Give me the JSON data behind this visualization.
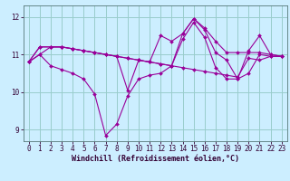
{
  "background_color": "#cceeff",
  "grid_color": "#99cccc",
  "line_color": "#990099",
  "ylim": [
    8.7,
    12.3
  ],
  "xlim": [
    -0.5,
    23.5
  ],
  "yticks": [
    9,
    10,
    11,
    12
  ],
  "xticks": [
    0,
    1,
    2,
    3,
    4,
    5,
    6,
    7,
    8,
    9,
    10,
    11,
    12,
    13,
    14,
    15,
    16,
    17,
    18,
    19,
    20,
    21,
    22,
    23
  ],
  "xlabel": "Windchill (Refroidissement éolien,°C)",
  "xlabel_fontsize": 6.0,
  "tick_fontsize": 5.5,
  "lines": [
    {
      "x": [
        0,
        1,
        2,
        3,
        4,
        5,
        6,
        7,
        8,
        9,
        10,
        11,
        12,
        13,
        14,
        15,
        16,
        17,
        18,
        19,
        20,
        21,
        22,
        23
      ],
      "y": [
        10.8,
        11.0,
        10.7,
        10.6,
        10.5,
        10.35,
        9.95,
        8.85,
        9.15,
        9.9,
        10.35,
        10.45,
        10.5,
        10.7,
        11.4,
        11.85,
        11.45,
        10.65,
        10.35,
        10.35,
        10.5,
        11.0,
        10.95,
        10.95
      ]
    },
    {
      "x": [
        0,
        1,
        2,
        3,
        4,
        5,
        6,
        7,
        8,
        9,
        10,
        11,
        12,
        13,
        14,
        15,
        16,
        17,
        18,
        19,
        20,
        21,
        22,
        23
      ],
      "y": [
        10.8,
        11.2,
        11.2,
        11.2,
        11.15,
        11.1,
        11.05,
        11.0,
        10.95,
        10.9,
        10.85,
        10.8,
        10.75,
        10.7,
        10.65,
        10.6,
        10.55,
        10.5,
        10.45,
        10.4,
        10.9,
        10.85,
        10.95,
        10.95
      ]
    },
    {
      "x": [
        0,
        1,
        2,
        3,
        4,
        5,
        6,
        7,
        8,
        9,
        10,
        11,
        12,
        13,
        14,
        15,
        16,
        17,
        18,
        19,
        20,
        21,
        22,
        23
      ],
      "y": [
        10.8,
        11.2,
        11.2,
        11.2,
        11.15,
        11.1,
        11.05,
        11.0,
        10.95,
        10.9,
        10.85,
        10.8,
        10.75,
        10.7,
        11.55,
        11.95,
        11.7,
        11.35,
        11.05,
        11.05,
        11.05,
        11.05,
        11.0,
        10.95
      ]
    },
    {
      "x": [
        0,
        1,
        2,
        3,
        4,
        5,
        6,
        7,
        8,
        9,
        10,
        11,
        12,
        13,
        14,
        15,
        16,
        17,
        18,
        19,
        20,
        21,
        22,
        23
      ],
      "y": [
        10.8,
        11.0,
        11.2,
        11.2,
        11.15,
        11.1,
        11.05,
        11.0,
        10.95,
        10.05,
        10.85,
        10.8,
        11.5,
        11.35,
        11.55,
        11.95,
        11.65,
        11.05,
        10.85,
        10.35,
        11.1,
        11.5,
        11.0,
        10.95
      ]
    }
  ]
}
